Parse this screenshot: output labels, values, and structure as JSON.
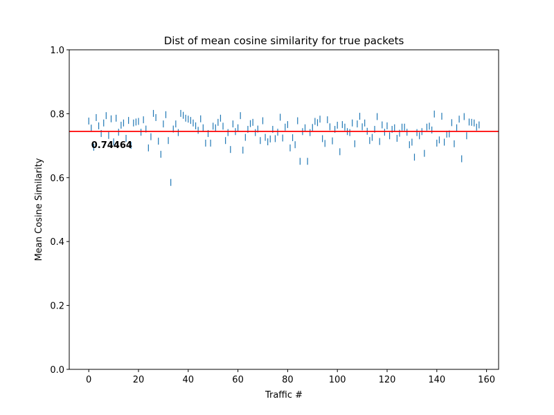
{
  "chart_data": {
    "type": "scatter",
    "marker": "|",
    "title": "Dist of mean cosine similarity for true packets",
    "xlabel": "Traffic #",
    "ylabel": "Mean Cosine Similarity",
    "color": "#1f77b4",
    "mean": 0.74464,
    "mean_color": "#ff0000",
    "xlim": [
      -7.85,
      164.85
    ],
    "xticks": [
      0,
      20,
      40,
      60,
      80,
      100,
      120,
      140,
      160
    ],
    "ylim": [
      0,
      1
    ],
    "yticks": [
      {
        "value": 0,
        "label": "0.0"
      },
      {
        "value": 0.2,
        "label": "0.2"
      },
      {
        "value": 0.4,
        "label": "0.4"
      },
      {
        "value": 0.6,
        "label": "0.6"
      },
      {
        "value": 0.8,
        "label": "0.8"
      },
      {
        "value": 1,
        "label": "1.0"
      }
    ],
    "x": [
      0,
      1,
      2,
      3,
      4,
      5,
      6,
      7,
      8,
      9,
      10,
      11,
      12,
      13,
      14,
      15,
      16,
      17,
      18,
      19,
      20,
      21,
      22,
      23,
      24,
      25,
      26,
      27,
      28,
      29,
      30,
      31,
      32,
      33,
      34,
      35,
      36,
      37,
      38,
      39,
      40,
      41,
      42,
      43,
      44,
      45,
      46,
      47,
      48,
      49,
      50,
      51,
      52,
      53,
      54,
      55,
      56,
      57,
      58,
      59,
      60,
      61,
      62,
      63,
      64,
      65,
      66,
      67,
      68,
      69,
      70,
      71,
      72,
      73,
      74,
      75,
      76,
      77,
      78,
      79,
      80,
      81,
      82,
      83,
      84,
      85,
      86,
      87,
      88,
      89,
      90,
      91,
      92,
      93,
      94,
      95,
      96,
      97,
      98,
      99,
      100,
      101,
      102,
      103,
      104,
      105,
      106,
      107,
      108,
      109,
      110,
      111,
      112,
      113,
      114,
      115,
      116,
      117,
      118,
      119,
      120,
      121,
      122,
      123,
      124,
      125,
      126,
      127,
      128,
      129,
      130,
      131,
      132,
      133,
      134,
      135,
      136,
      137,
      138,
      139,
      140,
      141,
      142,
      143,
      144,
      145,
      146,
      147,
      148,
      149,
      150,
      151,
      152,
      153,
      154,
      155,
      156,
      157
    ],
    "values": [
      0.777,
      0.755,
      0.695,
      0.788,
      0.762,
      0.738,
      0.771,
      0.794,
      0.732,
      0.784,
      0.712,
      0.786,
      0.742,
      0.764,
      0.771,
      0.723,
      0.779,
      0.701,
      0.771,
      0.774,
      0.776,
      0.742,
      0.781,
      0.752,
      0.693,
      0.728,
      0.801,
      0.788,
      0.714,
      0.673,
      0.768,
      0.797,
      0.716,
      0.585,
      0.752,
      0.768,
      0.741,
      0.801,
      0.795,
      0.786,
      0.783,
      0.779,
      0.771,
      0.762,
      0.748,
      0.784,
      0.756,
      0.708,
      0.738,
      0.708,
      0.761,
      0.756,
      0.773,
      0.786,
      0.761,
      0.716,
      0.741,
      0.688,
      0.768,
      0.744,
      0.756,
      0.794,
      0.686,
      0.726,
      0.751,
      0.769,
      0.773,
      0.741,
      0.752,
      0.716,
      0.778,
      0.726,
      0.712,
      0.721,
      0.751,
      0.722,
      0.742,
      0.789,
      0.724,
      0.758,
      0.766,
      0.693,
      0.725,
      0.703,
      0.778,
      0.651,
      0.744,
      0.756,
      0.651,
      0.741,
      0.757,
      0.776,
      0.772,
      0.783,
      0.722,
      0.707,
      0.781,
      0.759,
      0.715,
      0.751,
      0.764,
      0.681,
      0.766,
      0.758,
      0.744,
      0.741,
      0.771,
      0.706,
      0.768,
      0.792,
      0.759,
      0.771,
      0.745,
      0.716,
      0.726,
      0.751,
      0.791,
      0.713,
      0.765,
      0.742,
      0.762,
      0.731,
      0.751,
      0.756,
      0.723,
      0.739,
      0.758,
      0.758,
      0.742,
      0.703,
      0.711,
      0.664,
      0.741,
      0.731,
      0.744,
      0.676,
      0.758,
      0.761,
      0.749,
      0.799,
      0.708,
      0.718,
      0.792,
      0.711,
      0.736,
      0.737,
      0.772,
      0.706,
      0.756,
      0.783,
      0.659,
      0.791,
      0.731,
      0.774,
      0.773,
      0.771,
      0.758,
      0.765
    ]
  }
}
